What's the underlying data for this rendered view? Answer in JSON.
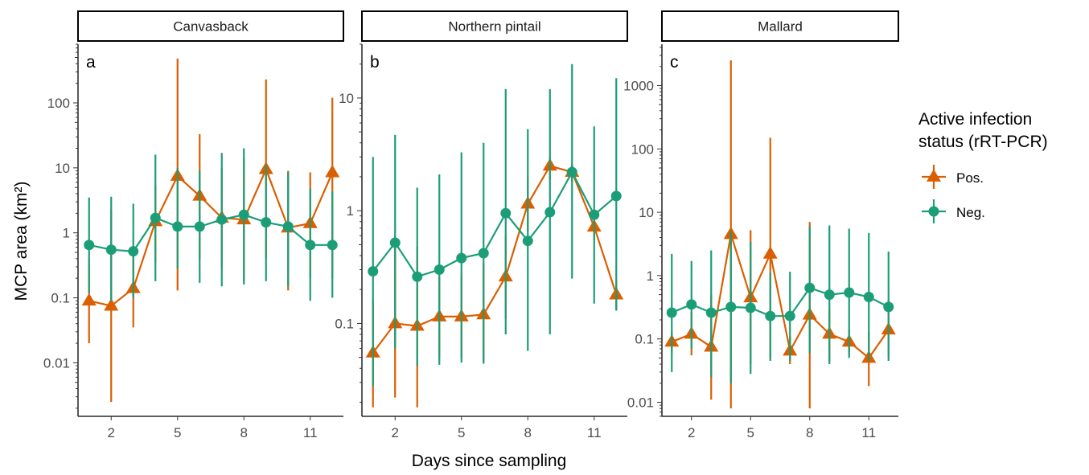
{
  "chart_data": {
    "type": "line",
    "xlabel": "Days since sampling",
    "ylabel": "MCP area (km²)",
    "y_scale": "log10",
    "x_ticks": [
      2,
      5,
      8,
      11
    ],
    "legend": {
      "title_line1": "Active infection",
      "title_line2": "status (rRT-PCR)",
      "position": "right",
      "entries": [
        {
          "label": "Pos.",
          "color": "#D95F02",
          "shape": "triangle"
        },
        {
          "label": "Neg.",
          "color": "#1B9E77",
          "shape": "circle"
        }
      ]
    },
    "panels": [
      {
        "strip": "Canvasback",
        "letter": "a",
        "ylim": [
          0.0015,
          800
        ],
        "y_ticks": [
          0.01,
          0.1,
          1,
          10,
          100
        ],
        "y_tick_labels": [
          "0.01",
          "0.1",
          "1",
          "10",
          "100"
        ],
        "series": [
          {
            "name": "Pos.",
            "points": [
              {
                "x": 1,
                "y": 0.09,
                "lo": 0.02,
                "hi": 0.4
              },
              {
                "x": 2,
                "y": 0.075,
                "lo": 0.0025,
                "hi": 2.3
              },
              {
                "x": 3,
                "y": 0.14,
                "lo": 0.035,
                "hi": 0.6
              },
              {
                "x": 4,
                "y": 1.5,
                "lo": 0.35,
                "hi": 5.5
              },
              {
                "x": 5,
                "y": 7.5,
                "lo": 0.13,
                "hi": 480
              },
              {
                "x": 6,
                "y": 3.7,
                "lo": 0.4,
                "hi": 33
              },
              {
                "x": 7,
                "y": 1.7,
                "lo": 0.28,
                "hi": 10
              },
              {
                "x": 8,
                "y": 1.6,
                "lo": 0.18,
                "hi": 14
              },
              {
                "x": 9,
                "y": 9.5,
                "lo": 0.4,
                "hi": 230
              },
              {
                "x": 10,
                "y": 1.2,
                "lo": 0.13,
                "hi": 9
              },
              {
                "x": 11,
                "y": 1.4,
                "lo": 0.2,
                "hi": 8.5
              },
              {
                "x": 12,
                "y": 8.5,
                "lo": 0.2,
                "hi": 120
              }
            ]
          },
          {
            "name": "Neg.",
            "points": [
              {
                "x": 1,
                "y": 0.65,
                "lo": 0.12,
                "hi": 3.5
              },
              {
                "x": 2,
                "y": 0.55,
                "lo": 0.09,
                "hi": 3.6
              },
              {
                "x": 3,
                "y": 0.52,
                "lo": 0.1,
                "hi": 2.8
              },
              {
                "x": 4,
                "y": 1.7,
                "lo": 0.18,
                "hi": 16
              },
              {
                "x": 5,
                "y": 1.25,
                "lo": 0.28,
                "hi": 10
              },
              {
                "x": 6,
                "y": 1.25,
                "lo": 0.17,
                "hi": 9
              },
              {
                "x": 7,
                "y": 1.6,
                "lo": 0.15,
                "hi": 17
              },
              {
                "x": 8,
                "y": 1.9,
                "lo": 0.16,
                "hi": 20
              },
              {
                "x": 9,
                "y": 1.45,
                "lo": 0.18,
                "hi": 11
              },
              {
                "x": 10,
                "y": 1.25,
                "lo": 0.15,
                "hi": 8.5
              },
              {
                "x": 11,
                "y": 0.65,
                "lo": 0.09,
                "hi": 4.8
              },
              {
                "x": 12,
                "y": 0.65,
                "lo": 0.1,
                "hi": 4.3
              }
            ]
          }
        ]
      },
      {
        "strip": "Northern pintail",
        "letter": "b",
        "ylim": [
          0.015,
          30
        ],
        "y_ticks": [
          0.1,
          1,
          10
        ],
        "y_tick_labels": [
          "0.1",
          "1",
          "10"
        ],
        "series": [
          {
            "name": "Pos.",
            "points": [
              {
                "x": 1,
                "y": 0.055,
                "lo": 0.018,
                "hi": 0.16
              },
              {
                "x": 2,
                "y": 0.1,
                "lo": 0.022,
                "hi": 0.6
              },
              {
                "x": 3,
                "y": 0.095,
                "lo": 0.018,
                "hi": 0.48
              },
              {
                "x": 4,
                "y": 0.115,
                "lo": 0.05,
                "hi": 0.26
              },
              {
                "x": 5,
                "y": 0.115,
                "lo": 0.05,
                "hi": 0.27
              },
              {
                "x": 6,
                "y": 0.12,
                "lo": 0.045,
                "hi": 0.34
              },
              {
                "x": 7,
                "y": 0.26,
                "lo": 0.11,
                "hi": 0.6
              },
              {
                "x": 8,
                "y": 1.15,
                "lo": 0.65,
                "hi": 2
              },
              {
                "x": 9,
                "y": 2.5,
                "lo": 1.9,
                "hi": 3
              },
              {
                "x": 10,
                "y": 2.2,
                "lo": 1.8,
                "hi": 2.6
              },
              {
                "x": 11,
                "y": 0.72,
                "lo": 0.55,
                "hi": 0.9
              },
              {
                "x": 12,
                "y": 0.18,
                "lo": 0.13,
                "hi": 0.24
              }
            ]
          },
          {
            "name": "Neg.",
            "points": [
              {
                "x": 1,
                "y": 0.29,
                "lo": 0.028,
                "hi": 3
              },
              {
                "x": 2,
                "y": 0.52,
                "lo": 0.06,
                "hi": 4.7
              },
              {
                "x": 3,
                "y": 0.26,
                "lo": 0.042,
                "hi": 1.6
              },
              {
                "x": 4,
                "y": 0.3,
                "lo": 0.043,
                "hi": 2.1
              },
              {
                "x": 5,
                "y": 0.38,
                "lo": 0.045,
                "hi": 3.3
              },
              {
                "x": 6,
                "y": 0.42,
                "lo": 0.044,
                "hi": 4
              },
              {
                "x": 7,
                "y": 0.95,
                "lo": 0.08,
                "hi": 12
              },
              {
                "x": 8,
                "y": 0.54,
                "lo": 0.057,
                "hi": 5.3
              },
              {
                "x": 9,
                "y": 0.97,
                "lo": 0.08,
                "hi": 12
              },
              {
                "x": 10,
                "y": 2.2,
                "lo": 0.25,
                "hi": 20
              },
              {
                "x": 11,
                "y": 0.92,
                "lo": 0.15,
                "hi": 5.6
              },
              {
                "x": 12,
                "y": 1.35,
                "lo": 0.13,
                "hi": 15
              }
            ]
          }
        ]
      },
      {
        "strip": "Mallard",
        "letter": "c",
        "ylim": [
          0.006,
          4500
        ],
        "y_ticks": [
          0.01,
          0.1,
          1,
          10,
          100,
          1000
        ],
        "y_tick_labels": [
          "0.01",
          "0.1",
          "1",
          "10",
          "100",
          "1000"
        ],
        "series": [
          {
            "name": "Pos.",
            "points": [
              {
                "x": 1,
                "y": 0.09,
                "lo": 0.06,
                "hi": 0.13
              },
              {
                "x": 2,
                "y": 0.12,
                "lo": 0.055,
                "hi": 0.27
              },
              {
                "x": 3,
                "y": 0.075,
                "lo": 0.011,
                "hi": 0.5
              },
              {
                "x": 4,
                "y": 4.5,
                "lo": 0.008,
                "hi": 2500
              },
              {
                "x": 5,
                "y": 0.45,
                "lo": 0.04,
                "hi": 5.2
              },
              {
                "x": 6,
                "y": 2.2,
                "lo": 0.05,
                "hi": 150
              },
              {
                "x": 7,
                "y": 0.065,
                "lo": 0.04,
                "hi": 0.11
              },
              {
                "x": 8,
                "y": 0.24,
                "lo": 0.008,
                "hi": 7
              },
              {
                "x": 9,
                "y": 0.12,
                "lo": 0.045,
                "hi": 0.3
              },
              {
                "x": 10,
                "y": 0.09,
                "lo": 0.06,
                "hi": 0.14
              },
              {
                "x": 11,
                "y": 0.05,
                "lo": 0.018,
                "hi": 0.13
              },
              {
                "x": 12,
                "y": 0.14,
                "lo": 0.05,
                "hi": 0.42
              }
            ]
          },
          {
            "name": "Neg.",
            "points": [
              {
                "x": 1,
                "y": 0.26,
                "lo": 0.03,
                "hi": 2.2
              },
              {
                "x": 2,
                "y": 0.35,
                "lo": 0.07,
                "hi": 1.7
              },
              {
                "x": 3,
                "y": 0.26,
                "lo": 0.025,
                "hi": 2.5
              },
              {
                "x": 4,
                "y": 0.32,
                "lo": 0.02,
                "hi": 5
              },
              {
                "x": 5,
                "y": 0.31,
                "lo": 0.028,
                "hi": 3.4
              },
              {
                "x": 6,
                "y": 0.23,
                "lo": 0.045,
                "hi": 1.1
              },
              {
                "x": 7,
                "y": 0.23,
                "lo": 0.045,
                "hi": 1.15
              },
              {
                "x": 8,
                "y": 0.64,
                "lo": 0.06,
                "hi": 6
              },
              {
                "x": 9,
                "y": 0.5,
                "lo": 0.04,
                "hi": 6.2
              },
              {
                "x": 10,
                "y": 0.54,
                "lo": 0.05,
                "hi": 5.5
              },
              {
                "x": 11,
                "y": 0.46,
                "lo": 0.045,
                "hi": 4.7
              },
              {
                "x": 12,
                "y": 0.32,
                "lo": 0.045,
                "hi": 2.4
              }
            ]
          }
        ]
      }
    ]
  }
}
